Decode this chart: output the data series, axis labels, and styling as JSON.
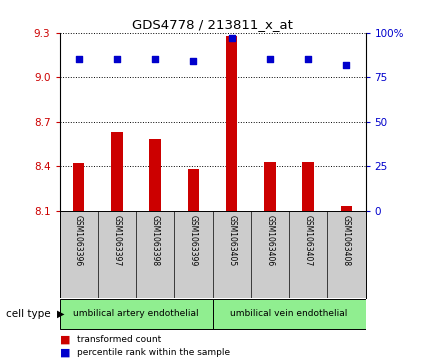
{
  "title": "GDS4778 / 213811_x_at",
  "samples": [
    "GSM1063396",
    "GSM1063397",
    "GSM1063398",
    "GSM1063399",
    "GSM1063405",
    "GSM1063406",
    "GSM1063407",
    "GSM1063408"
  ],
  "transformed_counts": [
    8.42,
    8.63,
    8.58,
    8.38,
    9.28,
    8.43,
    8.43,
    8.13
  ],
  "percentile_ranks": [
    85,
    85,
    85,
    84,
    97,
    85,
    85,
    82
  ],
  "ylim_left": [
    8.1,
    9.3
  ],
  "yticks_left": [
    8.1,
    8.4,
    8.7,
    9.0,
    9.3
  ],
  "ylim_right": [
    0,
    100
  ],
  "yticks_right": [
    0,
    25,
    50,
    75,
    100
  ],
  "yticklabels_right": [
    "0",
    "25",
    "50",
    "75",
    "100%"
  ],
  "bar_color": "#cc0000",
  "dot_color": "#0000cc",
  "bar_bottom": 8.1,
  "cell_type_label": "cell type",
  "legend_bar_label": "transformed count",
  "legend_dot_label": "percentile rank within the sample",
  "tick_color_left": "#cc0000",
  "tick_color_right": "#0000cc",
  "bg_plot": "#ffffff",
  "bg_label": "#cccccc",
  "cell_type_color": "#90ee90",
  "group1_label": "umbilical artery endothelial",
  "group2_label": "umbilical vein endothelial",
  "group1_indices": [
    0,
    3
  ],
  "group2_indices": [
    4,
    7
  ]
}
